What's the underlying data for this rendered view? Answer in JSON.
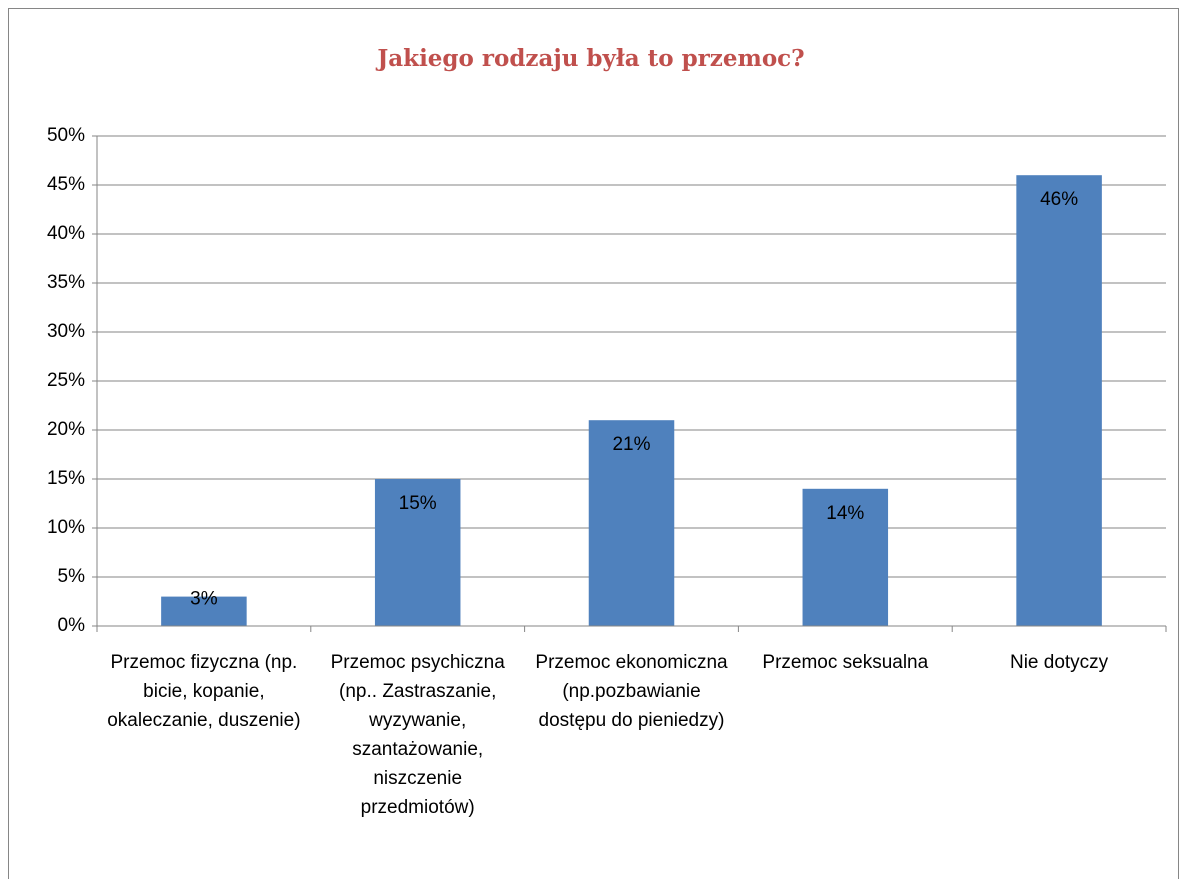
{
  "chart_data": {
    "type": "bar",
    "title": "Jakiego rodzaju była to przemoc?",
    "categories": [
      "Przemoc fizyczna (np. bicie, kopanie, okaleczanie, duszenie)",
      "Przemoc psychiczna (np.. Zastraszanie, wyzywanie, szantażowanie, niszczenie przedmiotów)",
      "Przemoc ekonomiczna (np.pozbawianie dostępu do pieniedzy)",
      "Przemoc seksualna",
      "Nie dotyczy"
    ],
    "values": [
      3,
      15,
      21,
      14,
      46
    ],
    "value_labels": [
      "3%",
      "15%",
      "21%",
      "14%",
      "46%"
    ],
    "color": "#4f81bd",
    "ylim": [
      0,
      50
    ],
    "yticks": [
      {
        "value": 0,
        "label": "0%"
      },
      {
        "value": 5,
        "label": "5%"
      },
      {
        "value": 10,
        "label": "10%"
      },
      {
        "value": 15,
        "label": "15%"
      },
      {
        "value": 20,
        "label": "20%"
      },
      {
        "value": 25,
        "label": "25%"
      },
      {
        "value": 30,
        "label": "30%"
      },
      {
        "value": 35,
        "label": "35%"
      },
      {
        "value": 40,
        "label": "40%"
      },
      {
        "value": 45,
        "label": "45%"
      },
      {
        "value": 50,
        "label": "50%"
      }
    ],
    "grid": true
  }
}
